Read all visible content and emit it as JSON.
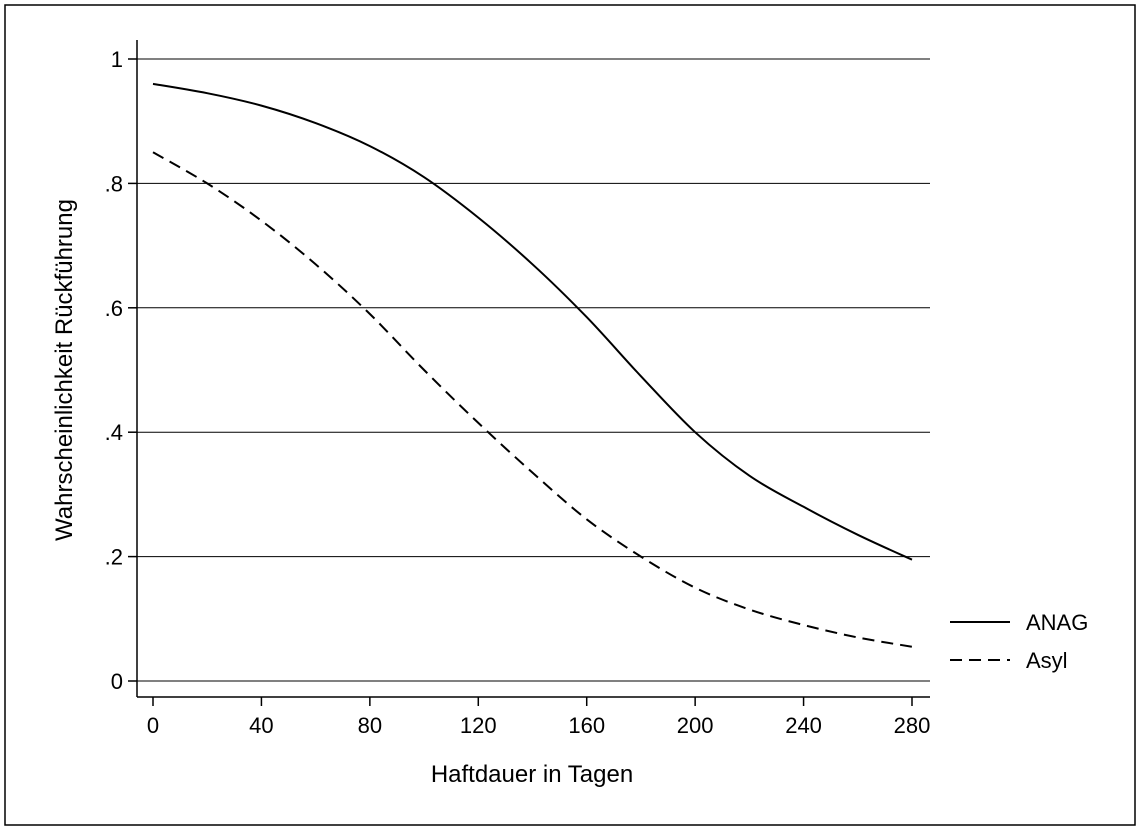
{
  "chart_data": {
    "type": "line",
    "title": "",
    "xlabel": "Haftdauer in Tagen",
    "ylabel": "Wahrscheinlichkeit Rückführung",
    "xlim": [
      0,
      280
    ],
    "ylim": [
      0,
      1
    ],
    "x_ticks": [
      0,
      40,
      80,
      120,
      160,
      200,
      240,
      280
    ],
    "x_tick_labels": [
      "0",
      "40",
      "80",
      "120",
      "160",
      "200",
      "240",
      "280"
    ],
    "y_ticks": [
      0,
      0.2,
      0.4,
      0.6,
      0.8,
      1
    ],
    "y_tick_labels": [
      "0",
      ".2",
      ".4",
      ".6",
      ".8",
      "1"
    ],
    "grid": "horizontal",
    "legend_position": "right",
    "series": [
      {
        "name": "ANAG",
        "style": "solid",
        "color": "#000000",
        "x": [
          0,
          20,
          40,
          60,
          80,
          100,
          120,
          140,
          160,
          180,
          200,
          220,
          240,
          260,
          280
        ],
        "y": [
          0.96,
          0.945,
          0.925,
          0.897,
          0.86,
          0.81,
          0.745,
          0.67,
          0.585,
          0.49,
          0.4,
          0.33,
          0.28,
          0.235,
          0.195
        ]
      },
      {
        "name": "Asyl",
        "style": "dashed",
        "color": "#000000",
        "x": [
          0,
          20,
          40,
          60,
          80,
          100,
          120,
          140,
          160,
          180,
          200,
          220,
          240,
          260,
          280
        ],
        "y": [
          0.85,
          0.8,
          0.74,
          0.67,
          0.59,
          0.5,
          0.415,
          0.335,
          0.26,
          0.2,
          0.15,
          0.115,
          0.09,
          0.07,
          0.055
        ]
      }
    ]
  }
}
